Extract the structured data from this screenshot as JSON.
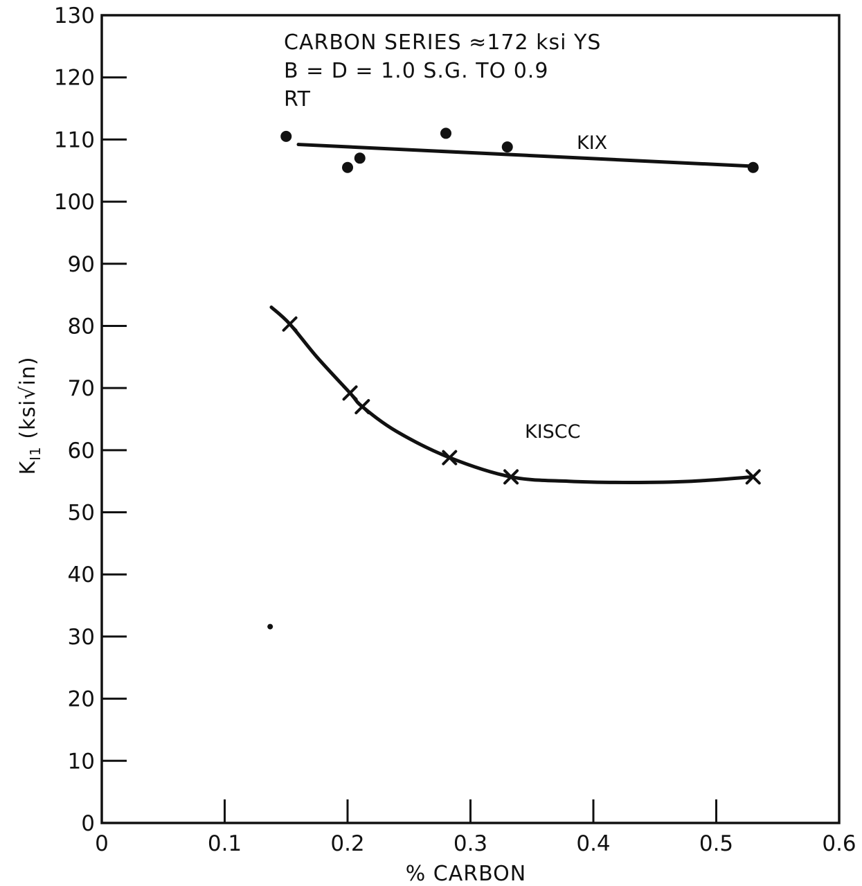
{
  "chart_data": {
    "type": "scatter",
    "annotation_lines": [
      "CARBON SERIES ≈172 ksi YS",
      "B = D = 1.0  S.G. TO 0.9",
      "RT"
    ],
    "xlabel": "% CARBON",
    "ylabel": "K_I1 (ksi√in)",
    "ylabel_main": "K",
    "ylabel_sub": "I1",
    "ylabel_rest": " (ksi√in)",
    "xlim": [
      0,
      0.6
    ],
    "ylim": [
      0,
      130
    ],
    "x_ticks": [
      0,
      0.1,
      0.2,
      0.3,
      0.4,
      0.5,
      0.6
    ],
    "x_tick_labels": [
      "0",
      "0.1",
      "0.2",
      "0.3",
      "0.4",
      "0.5",
      "0.6"
    ],
    "y_ticks": [
      0,
      10,
      20,
      30,
      40,
      50,
      60,
      70,
      80,
      90,
      100,
      110,
      120,
      130
    ],
    "y_tick_labels": [
      "0",
      "10",
      "20",
      "30",
      "40",
      "50",
      "60",
      "70",
      "80",
      "90",
      "100",
      "110",
      "120",
      "130"
    ],
    "grid": false,
    "series": [
      {
        "name": "KIX",
        "marker": "dot",
        "x": [
          0.15,
          0.2,
          0.21,
          0.28,
          0.33,
          0.53
        ],
        "y": [
          110.5,
          105.5,
          107.0,
          111.0,
          108.8,
          105.5
        ],
        "fit": {
          "x": [
            0.16,
            0.53
          ],
          "y": [
            109.2,
            105.7
          ]
        }
      },
      {
        "name": "KISCC",
        "marker": "x",
        "x": [
          0.153,
          0.202,
          0.212,
          0.283,
          0.333,
          0.53
        ],
        "y": [
          80.3,
          69.2,
          67.0,
          58.8,
          55.7,
          55.7
        ],
        "fit": {
          "x": [
            0.138,
            0.153,
            0.175,
            0.202,
            0.212,
            0.24,
            0.283,
            0.333,
            0.38,
            0.43,
            0.48,
            0.53
          ],
          "y": [
            83.0,
            80.3,
            75.0,
            69.2,
            67.0,
            63.0,
            58.8,
            55.7,
            55.0,
            54.8,
            55.0,
            55.7
          ]
        }
      }
    ],
    "series_labels": [
      "KIX",
      "KISCC"
    ],
    "stray_marks": [
      {
        "x": 0.137,
        "y": 31.6
      }
    ]
  }
}
